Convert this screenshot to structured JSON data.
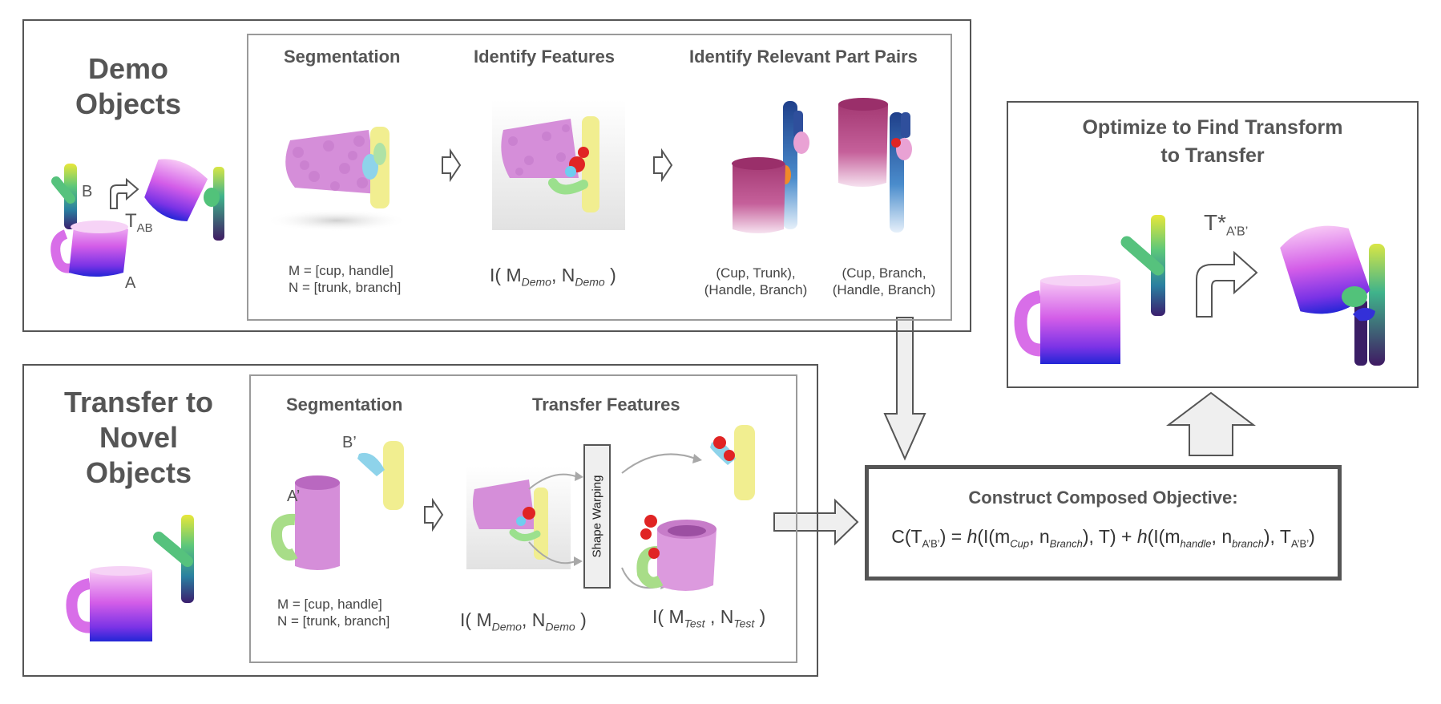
{
  "demo": {
    "title_line1": "Demo",
    "title_line2": "Objects",
    "label_a": "A",
    "label_b": "B",
    "transform_main": "T",
    "transform_sub": "AB",
    "col_segmentation": "Segmentation",
    "col_features": "Identify Features",
    "col_pairs": "Identify Relevant Part Pairs",
    "m_list": "M = [cup, handle]",
    "n_list": "N = [trunk, branch]",
    "feat_i": "I( M",
    "feat_m_sub": "Demo",
    "feat_n": ", N",
    "feat_n_sub": "Demo",
    "feat_close": " )",
    "pair1_line1": "(Cup, Trunk),",
    "pair1_line2": "(Handle, Branch)",
    "pair2_line1": "(Cup, Branch,",
    "pair2_line2": "(Handle, Branch)"
  },
  "transfer": {
    "title_line1": "Transfer to",
    "title_line2": "Novel",
    "title_line3": "Objects",
    "label_a": "A’",
    "label_b": "B’",
    "col_segmentation": "Segmentation",
    "col_transfer": "Transfer Features",
    "m_list": "M = [cup, handle]",
    "n_list": "N = [trunk, branch]",
    "demo_i": "I( M",
    "demo_m_sub": "Demo",
    "demo_n": ", N",
    "demo_n_sub": "Demo",
    "demo_close": " )",
    "warp_label": "Shape Warping",
    "test_i": "I( M",
    "test_m_sub": "Test",
    "test_n": " , N",
    "test_n_sub": "Test",
    "test_close": " )"
  },
  "optimize": {
    "title_line1": "Optimize to Find Transform",
    "title_line2": "to Transfer",
    "transform_main": "T*",
    "transform_sub": "A’B’"
  },
  "objective": {
    "title": "Construct Composed Objective:",
    "f_c": "C(T",
    "f_sub1": "A’B’",
    "f_eq": ") = ",
    "f_h1": "h",
    "f_p1": "(I(m",
    "f_sub2": "Cup",
    "f_p2": ", n",
    "f_sub3": "Branch",
    "f_p3": "), T) + ",
    "f_h2": "h",
    "f_p4": "(I(m",
    "f_sub4": "handle",
    "f_p5": ", n",
    "f_sub5": "branch",
    "f_p6": "), T",
    "f_sub6": "A’B’",
    "f_p7": ")"
  },
  "colors": {
    "box_border": "#555555",
    "inner_border": "#9a9a9a",
    "cup_pink": "#f2a6f0",
    "cup_purple": "#b23ee8",
    "cup_blue": "#2a2bd8",
    "cloud_pink": "#d78fd8",
    "trunk_yellow": "#f3ef8c",
    "arrow_fill": "#efefef"
  }
}
